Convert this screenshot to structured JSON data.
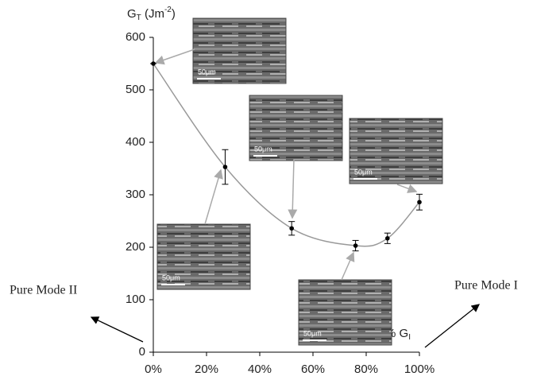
{
  "chart_data": {
    "type": "line",
    "y_label": [
      "G",
      "T",
      " (Jm",
      "-2",
      ")"
    ],
    "x_label": [
      "% G",
      "I"
    ],
    "x": [
      0,
      27,
      52,
      76,
      88,
      100
    ],
    "series": [
      {
        "values": [
          550,
          353,
          236,
          203,
          217,
          286
        ],
        "errors": [
          0,
          33,
          13,
          10,
          10,
          15
        ],
        "color": "#999999"
      }
    ],
    "xlim": [
      0,
      100
    ],
    "xticks": [
      {
        "value": 0,
        "label": "0%"
      },
      {
        "value": 20,
        "label": "20%"
      },
      {
        "value": 40,
        "label": "40%"
      },
      {
        "value": 60,
        "label": "60%"
      },
      {
        "value": 80,
        "label": "80%"
      },
      {
        "value": 100,
        "label": "100%"
      }
    ],
    "ylim": [
      0,
      600
    ],
    "yticks": [
      0,
      100,
      200,
      300,
      400,
      500,
      600
    ],
    "grid": false,
    "annotations": [
      "Pure Mode II",
      "Pure Mode I"
    ],
    "images": [
      {
        "scale": "50μm"
      },
      {
        "scale": "50μm"
      },
      {
        "scale": "50μm"
      },
      {
        "scale": "50μm"
      },
      {
        "scale": "50μm"
      }
    ]
  }
}
